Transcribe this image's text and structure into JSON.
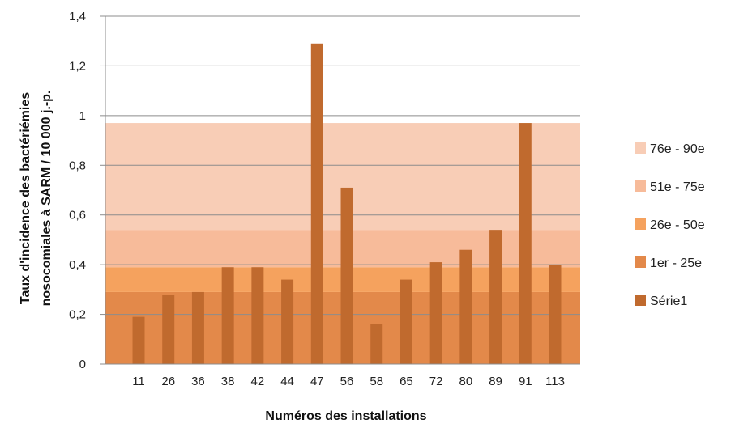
{
  "chart_data": {
    "type": "bar",
    "xlabel": "Numéros des installations",
    "ylabel_lines": [
      "Taux d'incidence des bactériémies",
      "nosocomiales à SARM / 10 000 j.-p."
    ],
    "ylim": [
      0,
      1.4
    ],
    "yticks": [
      "0",
      "0,2",
      "0,4",
      "0,6",
      "0,8",
      "1",
      "1,2",
      "1,4"
    ],
    "grid": true,
    "legend_position": "right",
    "categories": [
      "11",
      "26",
      "36",
      "38",
      "42",
      "44",
      "47",
      "56",
      "58",
      "65",
      "72",
      "80",
      "89",
      "91",
      "113"
    ],
    "series": [
      {
        "name": "Série1",
        "color": "#C06A2E",
        "values": [
          0.19,
          0.28,
          0.29,
          0.39,
          0.39,
          0.34,
          1.29,
          0.71,
          0.16,
          0.34,
          0.41,
          0.46,
          0.54,
          0.97,
          0.4
        ]
      }
    ],
    "bands": [
      {
        "name": "1er - 25e",
        "from": 0,
        "to": 0.29,
        "color": "#E3894A"
      },
      {
        "name": "26e - 50e",
        "from": 0.29,
        "to": 0.39,
        "color": "#F5A25E"
      },
      {
        "name": "51e - 75e",
        "from": 0.39,
        "to": 0.54,
        "color": "#F7BB9A"
      },
      {
        "name": "76e - 90e",
        "from": 0.54,
        "to": 0.97,
        "color": "#F8CDB6"
      }
    ],
    "legend": [
      {
        "name": "76e - 90e",
        "color": "#F8CDB6"
      },
      {
        "name": "51e - 75e",
        "color": "#F7BB9A"
      },
      {
        "name": "26e - 50e",
        "color": "#F5A25E"
      },
      {
        "name": "1er - 25e",
        "color": "#E3894A"
      },
      {
        "name": "Série1",
        "color": "#C06A2E"
      }
    ]
  }
}
